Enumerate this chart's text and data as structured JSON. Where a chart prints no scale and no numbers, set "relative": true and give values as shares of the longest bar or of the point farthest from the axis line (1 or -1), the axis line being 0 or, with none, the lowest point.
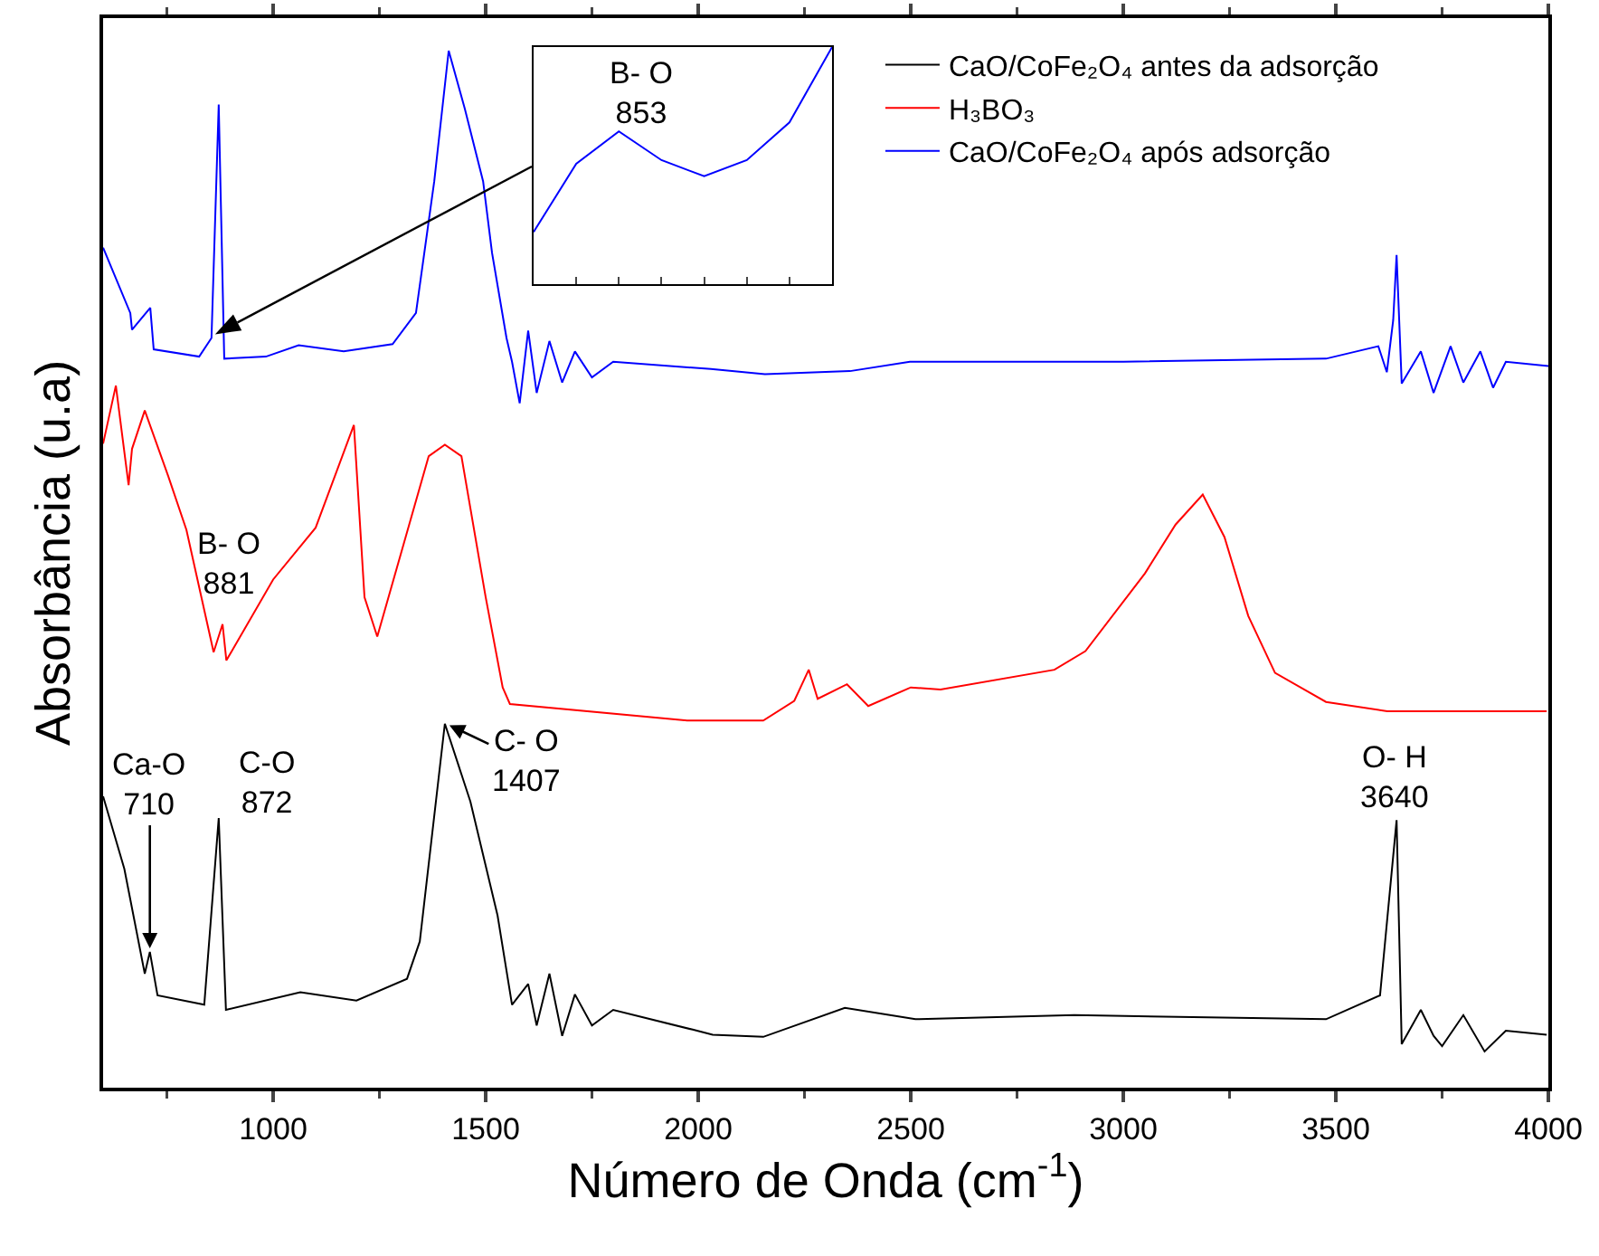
{
  "chart_data": [
    {
      "type": "line",
      "relative": true,
      "xlabel": "Número de Onda (cm$^{-1}$)",
      "ylabel": "Absorbância (u.a)",
      "xlim": [
        600,
        4000
      ],
      "xticks": [
        1000,
        1500,
        2000,
        2500,
        3000,
        3500,
        4000
      ],
      "grid": false,
      "legend": "top right",
      "marker": "none",
      "line_style": "solid",
      "tick_labels": "x",
      "series": [
        {
          "name": "CaO/CoFe₂O₄ antes da adsorção",
          "color": "#000000",
          "x": [
            600,
            650,
            698,
            710,
            728,
            838,
            872,
            889,
            1064,
            1196,
            1315,
            1345,
            1404,
            1464,
            1528,
            1562,
            1600,
            1620,
            1650,
            1680,
            1710,
            1750,
            1800,
            1987,
            2034,
            2153,
            2345,
            2511,
            2885,
            3477,
            3604,
            3643,
            3655,
            3700,
            3730,
            3750,
            3800,
            3850,
            3900,
            3996
          ],
          "values": [
            0.281,
            0.211,
            0.11,
            0.131,
            0.089,
            0.08,
            0.26,
            0.075,
            0.092,
            0.084,
            0.105,
            0.141,
            0.351,
            0.276,
            0.166,
            0.08,
            0.1,
            0.06,
            0.11,
            0.05,
            0.09,
            0.06,
            0.075,
            0.056,
            0.051,
            0.049,
            0.077,
            0.066,
            0.07,
            0.066,
            0.089,
            0.258,
            0.042,
            0.075,
            0.05,
            0.04,
            0.07,
            0.035,
            0.055,
            0.051
          ]
        },
        {
          "name": "H₃BO₃",
          "color": "#ff0000",
          "x": [
            600,
            630,
            660,
            668,
            698,
            753,
            796,
            860,
            881,
            890,
            1000,
            1100,
            1190,
            1215,
            1245,
            1366,
            1404,
            1443,
            1500,
            1540,
            1557,
            1974,
            2153,
            2226,
            2260,
            2281,
            2350,
            2400,
            2500,
            2570,
            2838,
            2911,
            3051,
            3123,
            3187,
            3238,
            3294,
            3357,
            3477,
            3621,
            3996
          ],
          "values": [
            0.621,
            0.677,
            0.581,
            0.616,
            0.653,
            0.59,
            0.538,
            0.42,
            0.447,
            0.412,
            0.49,
            0.54,
            0.639,
            0.473,
            0.435,
            0.609,
            0.62,
            0.609,
            0.473,
            0.386,
            0.37,
            0.354,
            0.354,
            0.373,
            0.403,
            0.375,
            0.389,
            0.368,
            0.386,
            0.384,
            0.403,
            0.421,
            0.496,
            0.543,
            0.572,
            0.531,
            0.455,
            0.4,
            0.372,
            0.363,
            0.363
          ]
        },
        {
          "name": "CaO/CoFe₂O₄ após adsorção",
          "color": "#0000ff",
          "x": [
            600,
            664,
            668,
            711,
            719,
            826,
            855,
            872,
            885,
            983,
            1060,
            1166,
            1281,
            1336,
            1379,
            1413,
            1451,
            1494,
            1515,
            1549,
            1562,
            1580,
            1600,
            1620,
            1650,
            1680,
            1710,
            1750,
            1800,
            2030,
            2157,
            2357,
            2498,
            3000,
            3477,
            3600,
            3620,
            3635,
            3643,
            3655,
            3700,
            3730,
            3770,
            3800,
            3840,
            3870,
            3900,
            4000
          ],
          "values": [
            0.81,
            0.747,
            0.731,
            0.752,
            0.712,
            0.705,
            0.723,
            0.948,
            0.703,
            0.705,
            0.716,
            0.71,
            0.717,
            0.747,
            0.874,
            1,
            0.944,
            0.874,
            0.805,
            0.723,
            0.7,
            0.66,
            0.73,
            0.67,
            0.72,
            0.68,
            0.71,
            0.685,
            0.7,
            0.693,
            0.688,
            0.691,
            0.7,
            0.7,
            0.703,
            0.715,
            0.69,
            0.74,
            0.803,
            0.679,
            0.71,
            0.67,
            0.715,
            0.68,
            0.71,
            0.675,
            0.7,
            0.696
          ]
        }
      ],
      "annotations": [
        {
          "text": "Ca-O\n710",
          "x": 710,
          "y": 0.131
        },
        {
          "text": "C-O\n872",
          "x": 872,
          "y": 0.26
        },
        {
          "text": "C- O\n1407",
          "x": 1407,
          "y": 0.351
        },
        {
          "text": "O- H\n3640",
          "x": 3640,
          "y": 0.258
        },
        {
          "text": "B- O\n881",
          "x": 881,
          "y": 0.447
        }
      ]
    },
    {
      "type": "line",
      "relative": true,
      "tick_labels": false,
      "marker": "none",
      "categories": [
        null,
        null,
        null,
        null,
        null,
        null,
        null,
        null
      ],
      "series": [
        {
          "color": "#0000ff",
          "values": [
            0.22,
            0.508,
            0.644,
            0.523,
            0.455,
            0.523,
            0.682,
            1
          ]
        }
      ],
      "annotations": [
        "B- O\n853"
      ]
    }
  ]
}
